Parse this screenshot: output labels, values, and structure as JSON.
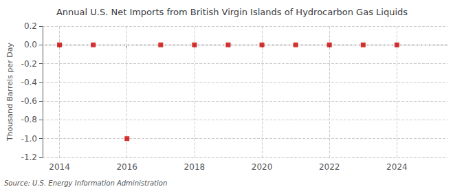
{
  "chart_data": {
    "type": "scatter",
    "title": "Annual U.S. Net Imports from British Virgin Islands of Hydrocarbon Gas Liquids",
    "ylabel": "Thousand Barrels per Day",
    "source": "Source: U.S. Energy Information Administration",
    "x": [
      2014,
      2015,
      2016,
      2017,
      2018,
      2019,
      2020,
      2021,
      2022,
      2023,
      2024
    ],
    "values": [
      0.0,
      0.0,
      -1.0,
      0.0,
      0.0,
      0.0,
      0.0,
      0.0,
      0.0,
      0.0,
      0.0
    ],
    "color": "#cc0000",
    "marker": "square",
    "xlim": [
      2013.5,
      2025.5
    ],
    "xticks": [
      2014,
      2016,
      2018,
      2020,
      2022,
      2024
    ],
    "ylim": [
      -1.2,
      0.2
    ],
    "yticks": [
      0.2,
      {
        "value": 0,
        "label": "0.0"
      },
      -0.2,
      -0.4,
      -0.6,
      -0.8,
      {
        "value": -1,
        "label": "-1.0"
      },
      -1.2
    ],
    "grid": true
  }
}
